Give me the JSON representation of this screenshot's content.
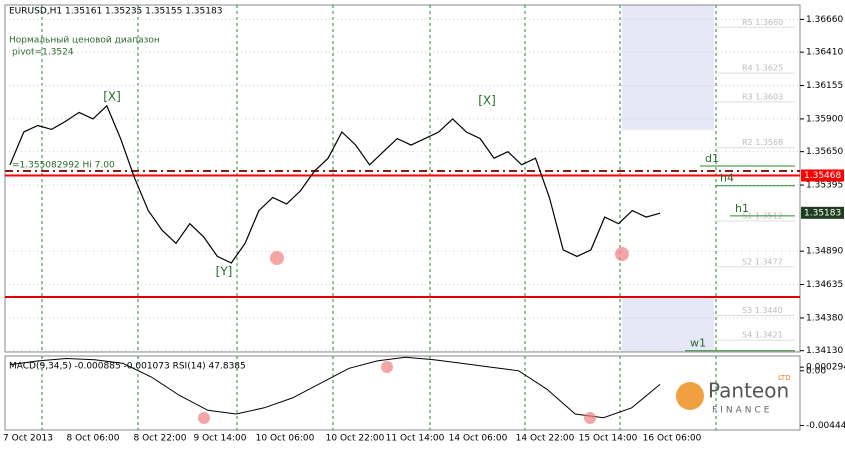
{
  "header": {
    "symbol_line": "EURUSD,H1 1.35161 1.35235 1.35155 1.35183",
    "indicator": "Нормальный ценовой диапазон",
    "pivot": "pivot=1.3524",
    "line_label": "=1.355082992 Hi 7.00"
  },
  "time_axis": [
    "7 Oct 2013",
    "8 Oct 06:00",
    "8 Oct 22:00",
    "9 Oct 14:00",
    "10 Oct 06:00",
    "10 Oct 22:00",
    "11 Oct 14:00",
    "14 Oct 06:00",
    "14 Oct 22:00",
    "15 Oct 14:00",
    "16 Oct 06:00"
  ],
  "chart_data": [
    {
      "type": "line",
      "color": "#000000",
      "values": [
        1.3555,
        1.358,
        1.3585,
        1.3582,
        1.3588,
        1.3595,
        1.359,
        1.36,
        1.3575,
        1.3545,
        1.352,
        1.3505,
        1.3495,
        1.351,
        1.35,
        1.3485,
        1.348,
        1.3495,
        1.352,
        1.353,
        1.3525,
        1.3535,
        1.355,
        1.356,
        1.358,
        1.357,
        1.3555,
        1.3565,
        1.3575,
        1.357,
        1.3575,
        1.358,
        1.359,
        1.358,
        1.3575,
        1.356,
        1.3565,
        1.3555,
        1.356,
        1.353,
        1.349,
        1.3485,
        1.349,
        1.3515,
        1.351,
        1.352,
        1.3515,
        1.3518
      ],
      "ylim": [
        1.3412,
        1.3677
      ],
      "yticks": [
        {
          "value": 1.3666,
          "label": "1.36660"
        },
        {
          "value": 1.3641,
          "label": "1.36410"
        },
        {
          "value": 1.36155,
          "label": "1.36155"
        },
        {
          "value": 1.359,
          "label": "1.35900"
        },
        {
          "value": 1.3565,
          "label": "1.35650"
        },
        {
          "value": 1.35395,
          "label": "1.35395"
        },
        {
          "value": 1.3489,
          "label": "1.34890"
        },
        {
          "value": 1.34635,
          "label": "1.34635"
        },
        {
          "value": 1.3438,
          "label": "1.34380"
        },
        {
          "value": 1.3413,
          "label": "1.34130"
        }
      ],
      "levels": [
        {
          "value": 1.35468,
          "label": "1.35468",
          "color": "#ff0000"
        },
        {
          "value": 1.35183,
          "label": "1.35183",
          "color": "#1f3d1f"
        }
      ],
      "ranges": [
        {
          "label": "d1",
          "value": 1.3554
        },
        {
          "label": "h4",
          "value": 1.3539
        },
        {
          "label": "h1",
          "value": 1.3516
        },
        {
          "label": "w1",
          "value": 1.3413
        }
      ],
      "pivots": [
        {
          "label": "R5 1.3660",
          "value": 1.366
        },
        {
          "label": "R4 1.3625",
          "value": 1.3625
        },
        {
          "label": "R3 1.3603",
          "value": 1.3603
        },
        {
          "label": "R2 1.3568",
          "value": 1.3568
        },
        {
          "label": "S1 1.3512",
          "value": 1.3512
        },
        {
          "label": "S2 1.3477",
          "value": 1.3477
        },
        {
          "label": "S3 1.3440",
          "value": 1.344
        },
        {
          "label": "S4 1.3421",
          "value": 1.3421
        }
      ],
      "annotations": [
        "[X]",
        "[Y]",
        "[X]"
      ]
    },
    {
      "type": "line",
      "title": "MACD(9,34,5) -0.000885 -0.001073 RSI(14) 47.8385",
      "color": "#000000",
      "values": [
        0.0005,
        0.0008,
        0.001,
        0.0009,
        0.0006,
        -0.0005,
        -0.002,
        -0.0032,
        -0.0035,
        -0.003,
        -0.0022,
        -0.001,
        0.0002,
        0.0008,
        0.0011,
        0.0009,
        0.0006,
        0.0003,
        0.0,
        -0.0015,
        -0.0035,
        -0.0038,
        -0.003,
        -0.0011
      ],
      "ylim": [
        -0.0048,
        0.0012
      ],
      "yticks": [
        {
          "value": 0.000294,
          "label": "0.000294"
        },
        {
          "value": 0,
          "label": "0.00"
        },
        {
          "value": -0.004442,
          "label": "-0.004442"
        }
      ]
    }
  ],
  "logo": {
    "name": "Panteon",
    "sub": "FINANCE",
    "tag": "LTD"
  }
}
